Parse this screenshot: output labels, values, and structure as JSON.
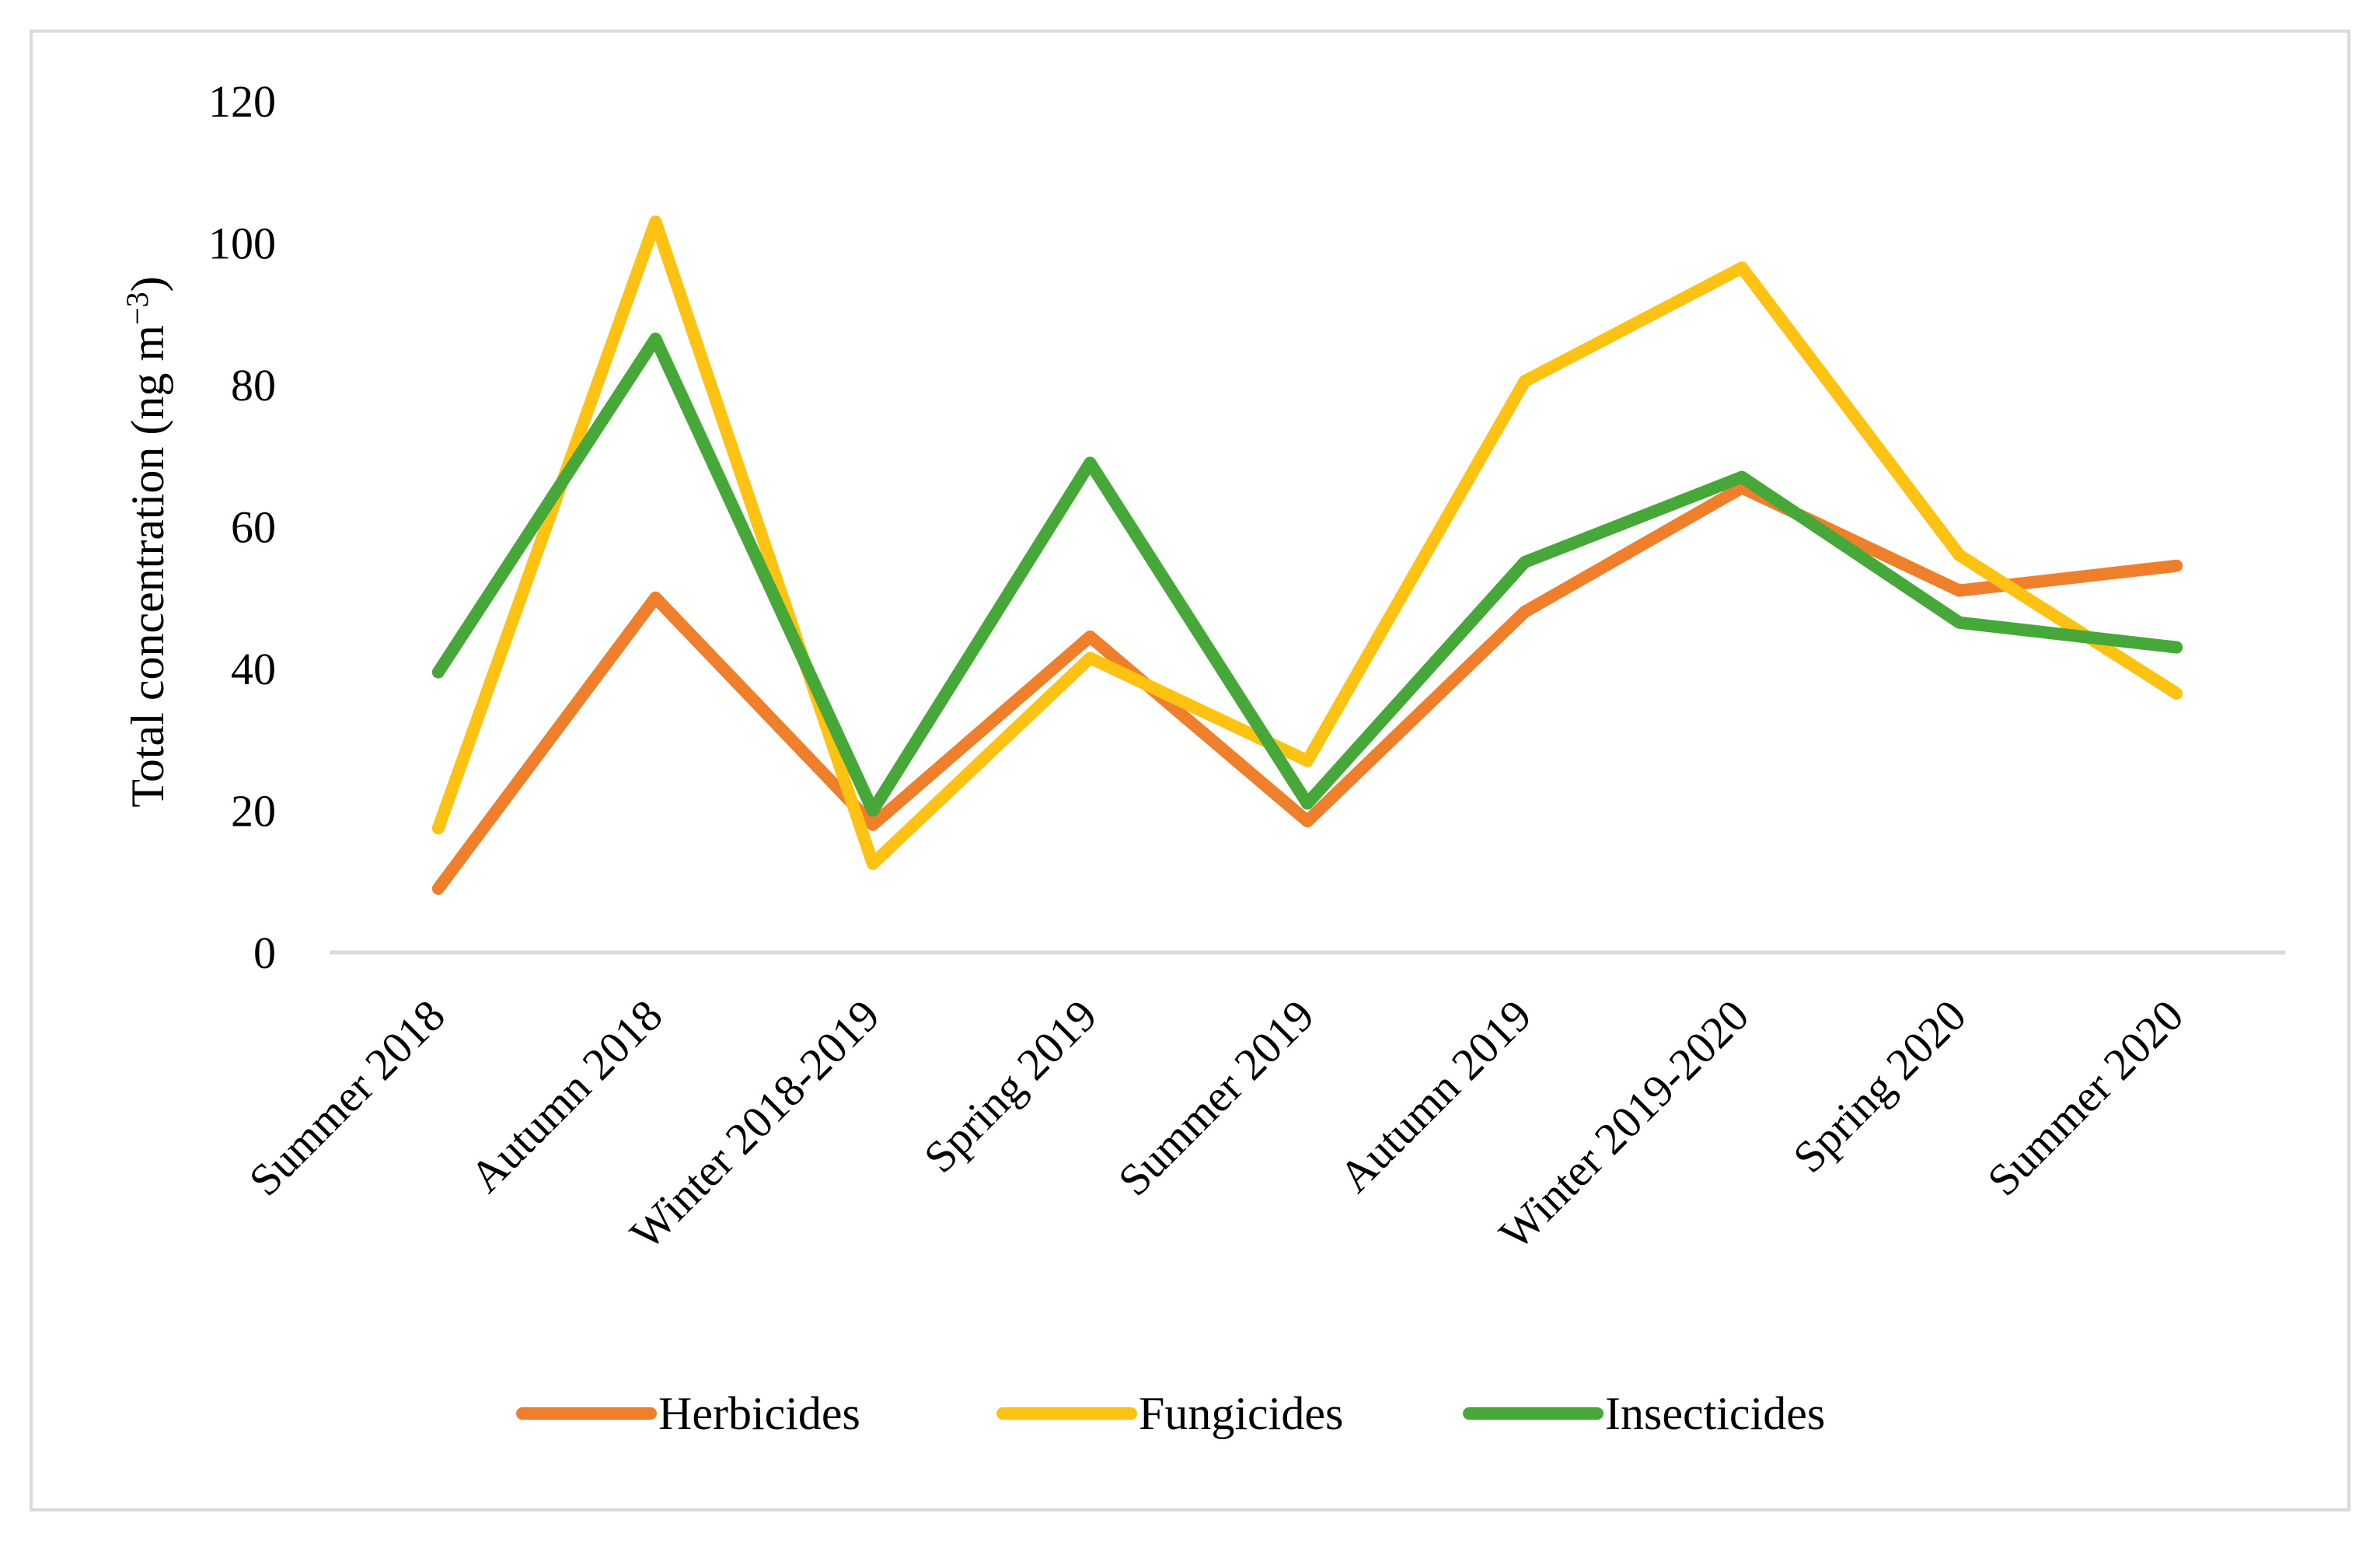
{
  "chart_data": {
    "type": "line",
    "title": "",
    "xlabel": "",
    "ylabel": "Total concentration (ng m",
    "ylabel_superscript": "−3",
    "ylabel_close": ")",
    "ylim": [
      0,
      120
    ],
    "yticks": [
      0,
      20,
      40,
      60,
      80,
      100,
      120
    ],
    "grid": false,
    "legend_position": "bottom",
    "categories": [
      "Summer 2018",
      "Autumn 2018",
      "Winter 2018-2019",
      "Spring 2019",
      "Summer 2019",
      "Autumn 2019",
      "Winter 2019-2020",
      "Spring 2020",
      "Summer 2020"
    ],
    "series": [
      {
        "name": "Herbicides",
        "color": "#f07f2c",
        "values": [
          9,
          50,
          18,
          44.5,
          18.5,
          48,
          65.5,
          51,
          54.5
        ]
      },
      {
        "name": "Fungicides",
        "color": "#fec312",
        "values": [
          17.5,
          103,
          12.5,
          41.5,
          27,
          80.5,
          96.5,
          56,
          36.5
        ]
      },
      {
        "name": "Insecticides",
        "color": "#46a838",
        "values": [
          39.5,
          86.5,
          20,
          69,
          21,
          55,
          67,
          46.5,
          43
        ]
      }
    ]
  }
}
